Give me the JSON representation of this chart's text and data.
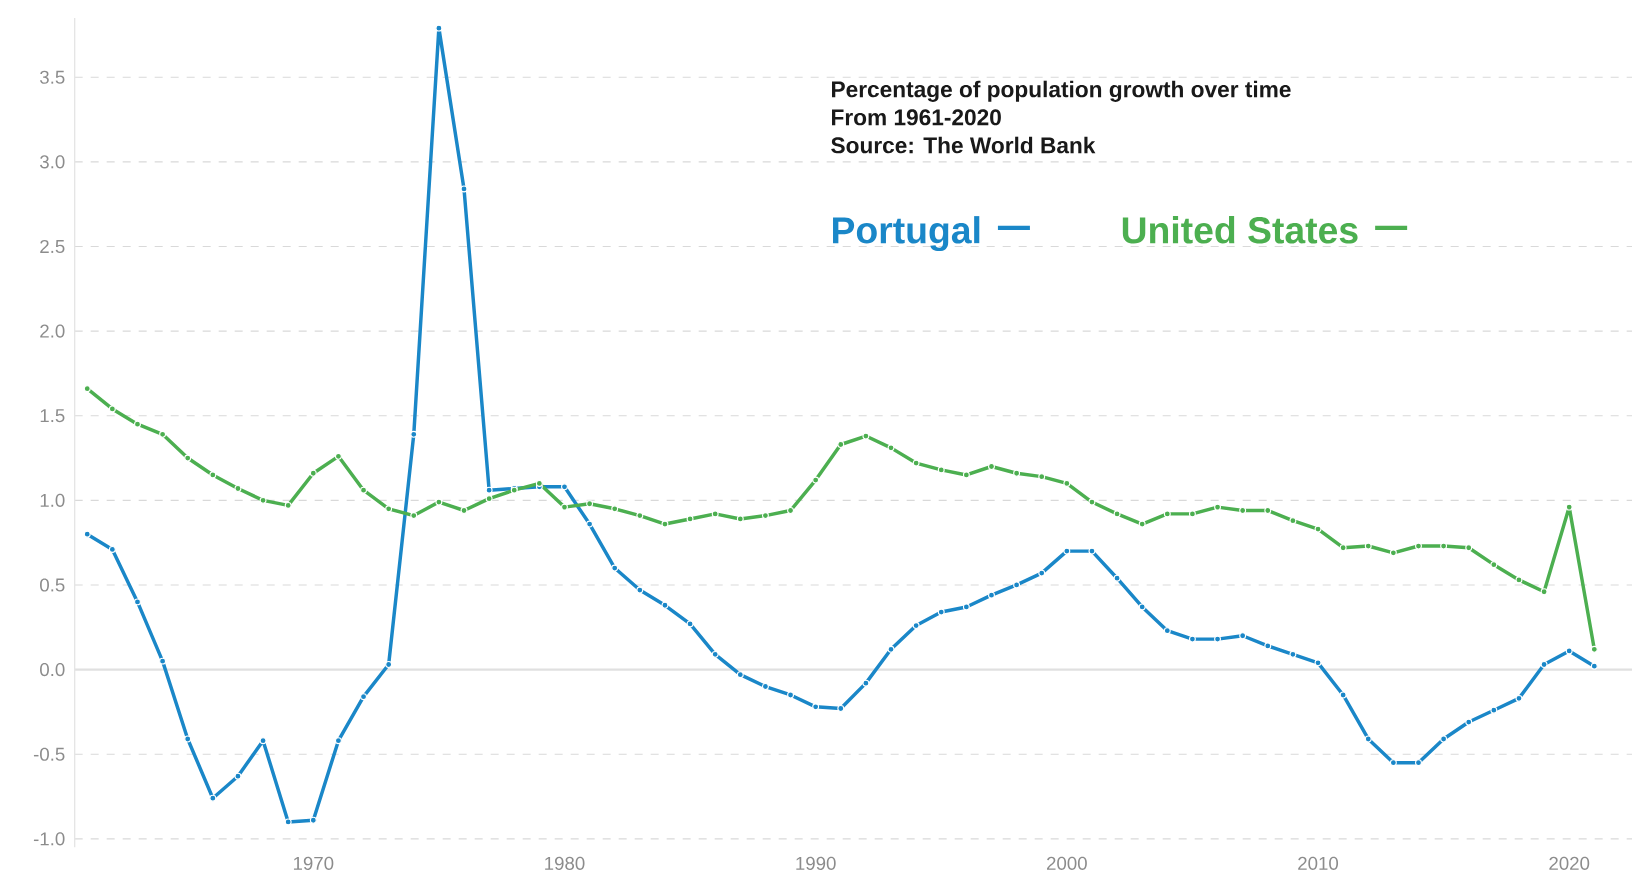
{
  "chart_data": {
    "type": "line",
    "title": "Percentage of population growth over time",
    "subtitle": "From 1961-2020",
    "annotations": [
      "Source: The World Bank"
    ],
    "x": [
      1961,
      1962,
      1963,
      1964,
      1965,
      1966,
      1967,
      1968,
      1969,
      1970,
      1971,
      1972,
      1973,
      1974,
      1975,
      1976,
      1977,
      1978,
      1979,
      1980,
      1981,
      1982,
      1983,
      1984,
      1985,
      1986,
      1987,
      1988,
      1989,
      1990,
      1991,
      1992,
      1993,
      1994,
      1995,
      1996,
      1997,
      1998,
      1999,
      2000,
      2001,
      2002,
      2003,
      2004,
      2005,
      2006,
      2007,
      2008,
      2009,
      2010,
      2011,
      2012,
      2013,
      2014,
      2015,
      2016,
      2017,
      2018,
      2019,
      2020,
      2021
    ],
    "series": [
      {
        "name": "Portugal",
        "color": "#1a87c8",
        "values": [
          0.8,
          0.71,
          0.4,
          0.05,
          -0.41,
          -0.76,
          -0.63,
          -0.42,
          -0.9,
          -0.89,
          -0.42,
          -0.16,
          0.03,
          1.39,
          3.79,
          2.84,
          1.06,
          1.07,
          1.08,
          1.08,
          0.86,
          0.6,
          0.47,
          0.38,
          0.27,
          0.09,
          -0.03,
          -0.1,
          -0.15,
          -0.22,
          -0.23,
          -0.08,
          0.12,
          0.26,
          0.34,
          0.37,
          0.44,
          0.5,
          0.57,
          0.7,
          0.7,
          0.54,
          0.37,
          0.23,
          0.18,
          0.18,
          0.2,
          0.14,
          0.09,
          0.04,
          -0.15,
          -0.41,
          -0.55,
          -0.55,
          -0.41,
          -0.31,
          -0.24,
          -0.17,
          0.03,
          0.11,
          0.02
        ]
      },
      {
        "name": "United States",
        "color": "#4caf50",
        "values": [
          1.66,
          1.54,
          1.45,
          1.39,
          1.25,
          1.15,
          1.07,
          1.0,
          0.97,
          1.16,
          1.26,
          1.06,
          0.95,
          0.91,
          0.99,
          0.94,
          1.01,
          1.06,
          1.1,
          0.96,
          0.98,
          0.95,
          0.91,
          0.86,
          0.89,
          0.92,
          0.89,
          0.91,
          0.94,
          1.12,
          1.33,
          1.38,
          1.31,
          1.22,
          1.18,
          1.15,
          1.2,
          1.16,
          1.14,
          1.1,
          0.99,
          0.92,
          0.86,
          0.92,
          0.92,
          0.96,
          0.94,
          0.94,
          0.88,
          0.83,
          0.72,
          0.73,
          0.69,
          0.73,
          0.73,
          0.72,
          0.62,
          0.53,
          0.46,
          0.96,
          0.12
        ]
      }
    ],
    "xlim": [
      1960.5,
      2022.5
    ],
    "ylim": [
      -1.05,
      3.85
    ],
    "xticks": [
      1970,
      1980,
      1990,
      2000,
      2010,
      2020
    ],
    "yticks": [
      {
        "value": -1.0,
        "label": "-1.0"
      },
      {
        "value": -0.5,
        "label": "-0.5"
      },
      {
        "value": 0.0,
        "label": "0.0"
      },
      {
        "value": 0.5,
        "label": "0.5"
      },
      {
        "value": 1.0,
        "label": "1.0"
      },
      {
        "value": 1.5,
        "label": "1.5"
      },
      {
        "value": 2.0,
        "label": "2.0"
      },
      {
        "value": 2.5,
        "label": "2.5"
      },
      {
        "value": 3.0,
        "label": "3.0"
      },
      {
        "value": 3.5,
        "label": "3.5"
      }
    ],
    "grid": "y",
    "legend": "top right",
    "marker": "circle"
  }
}
